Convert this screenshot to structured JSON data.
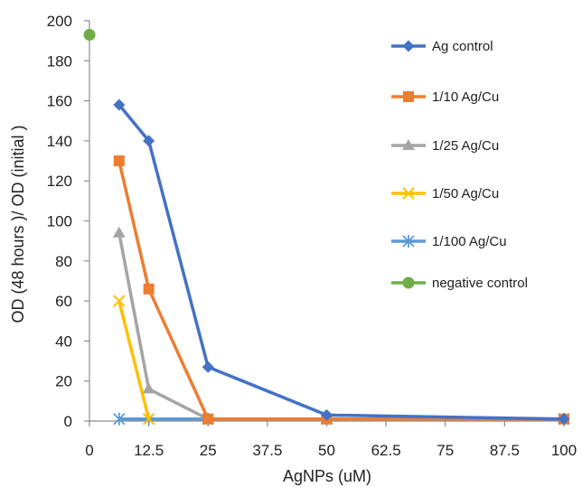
{
  "chart_data": {
    "type": "line",
    "title": "",
    "xlabel": "AgNPs (uM)",
    "ylabel": "OD (48 hours )/ OD (initial )",
    "xlim": [
      0,
      100
    ],
    "ylim": [
      0,
      200
    ],
    "x_ticks": [
      "0",
      "12.5",
      "25",
      "37.5",
      "50",
      "62.5",
      "75",
      "87.5",
      "100"
    ],
    "y_ticks": [
      "0",
      "20",
      "40",
      "60",
      "80",
      "100",
      "120",
      "140",
      "160",
      "180",
      "200"
    ],
    "grid": false,
    "legend_position": "right",
    "series": [
      {
        "name": "Ag control",
        "color": "#4472C4",
        "marker": "diamond",
        "x": [
          6.25,
          12.5,
          25,
          50,
          100
        ],
        "y": [
          158,
          140,
          27,
          3,
          1
        ]
      },
      {
        "name": "1/10 Ag/Cu",
        "color": "#ED7D31",
        "marker": "square",
        "x": [
          6.25,
          12.5,
          25,
          50,
          100
        ],
        "y": [
          130,
          66,
          1,
          1,
          1
        ]
      },
      {
        "name": "1/25 Ag/Cu",
        "color": "#A5A5A5",
        "marker": "triangle",
        "x": [
          6.25,
          12.5,
          25,
          50,
          100
        ],
        "y": [
          94,
          16,
          1,
          1,
          1
        ]
      },
      {
        "name": "1/50 Ag/Cu",
        "color": "#FFC000",
        "marker": "x",
        "x": [
          6.25,
          12.5
        ],
        "y": [
          60,
          1
        ]
      },
      {
        "name": "1/100 Ag/Cu",
        "color": "#5B9BD5",
        "marker": "star",
        "x": [
          6.25,
          12.5,
          25,
          50,
          100
        ],
        "y": [
          1,
          1,
          1,
          1,
          1
        ]
      },
      {
        "name": "negative control",
        "color": "#70AD47",
        "marker": "circle",
        "x": [
          0
        ],
        "y": [
          193
        ]
      }
    ]
  }
}
